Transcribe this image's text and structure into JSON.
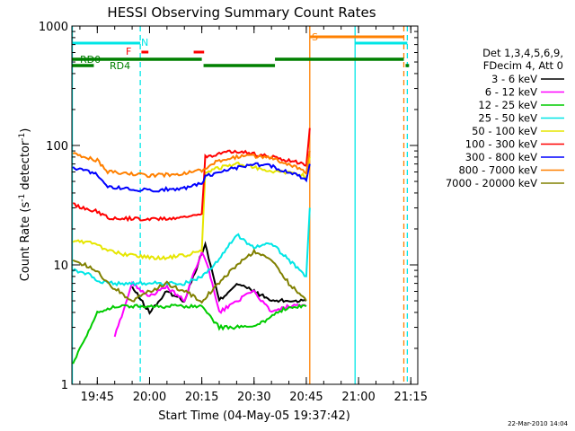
{
  "chart_data": {
    "type": "line",
    "title": "HESSI Observing Summary Count Rates",
    "xlabel": "Start Time (04-May-05 19:37:42)",
    "ylabel_main": "Count Rate (s",
    "ylabel_sup1": "-1",
    "ylabel_mid": " detector",
    "ylabel_sup2": "-1",
    "ylabel_end": ")",
    "yscale": "log",
    "ylim": [
      1,
      1000
    ],
    "xlim": [
      "19:37:42",
      "21:17:00"
    ],
    "x_ticks": [
      "19:45",
      "20:00",
      "20:15",
      "20:30",
      "20:45",
      "21:00",
      "21:15"
    ],
    "y_ticks": [
      "1",
      "10",
      "100",
      "1000"
    ],
    "timestamp": "22-Mar-2010 14:04",
    "legend": {
      "header1": "Det 1,3,4,5,6,9,",
      "header2": "FDecim 4, Att 0",
      "placement": "right"
    },
    "flags": [
      {
        "label": "N",
        "color": "#00e6e6"
      },
      {
        "label": "F",
        "color": "#ff0000"
      },
      {
        "label": "S",
        "color": "#ff8000"
      },
      {
        "label": "RD0",
        "color": "#008000"
      },
      {
        "label": "RD4",
        "color": "#008000"
      }
    ],
    "series": [
      {
        "name": "3 - 6 keV",
        "color": "#000000",
        "x": [
          "19:55",
          "20:00",
          "20:05",
          "20:10",
          "20:16",
          "20:20",
          "20:25",
          "20:30",
          "20:35",
          "20:40",
          "20:45"
        ],
        "y": [
          6.5,
          4,
          6,
          5,
          15,
          5,
          7,
          6,
          5,
          5,
          5
        ]
      },
      {
        "name": "6 - 12 keV",
        "color": "#ff00ff",
        "x": [
          "19:50",
          "19:55",
          "20:00",
          "20:05",
          "20:10",
          "20:15",
          "20:17",
          "20:20",
          "20:25",
          "20:30",
          "20:35",
          "20:40",
          "20:45"
        ],
        "y": [
          2.5,
          7,
          5.5,
          6.5,
          5,
          13,
          9,
          4,
          5,
          6,
          4,
          4.5,
          4.5
        ]
      },
      {
        "name": "12 - 25 keV",
        "color": "#00cc00",
        "x": [
          "19:38",
          "19:45",
          "19:50",
          "20:00",
          "20:10",
          "20:15",
          "20:20",
          "20:30",
          "20:40",
          "20:45"
        ],
        "y": [
          1.5,
          4,
          4.5,
          4.5,
          4.5,
          4.5,
          3,
          3,
          4.5,
          4.5
        ]
      },
      {
        "name": "25 - 50 keV",
        "color": "#00e6e6",
        "x": [
          "19:38",
          "19:42",
          "19:45",
          "19:48",
          "20:00",
          "20:10",
          "20:15",
          "20:20",
          "20:25",
          "20:30",
          "20:35",
          "20:40",
          "20:45",
          "20:46"
        ],
        "y": [
          9,
          8.5,
          7.5,
          7,
          7,
          7,
          8,
          11,
          18,
          14,
          15,
          11,
          8,
          30
        ]
      },
      {
        "name": "50 - 100 keV",
        "color": "#e6e600",
        "x": [
          "19:38",
          "19:45",
          "19:48",
          "19:55",
          "20:00",
          "20:05",
          "20:10",
          "20:15",
          "20:16",
          "20:20",
          "20:25",
          "20:30",
          "20:35",
          "20:40",
          "20:45",
          "20:46"
        ],
        "y": [
          16,
          15,
          13,
          12,
          11.5,
          11.5,
          12,
          13,
          60,
          65,
          70,
          66,
          60,
          60,
          55,
          80
        ]
      },
      {
        "name": "100 - 300 keV",
        "color": "#ff0000",
        "x": [
          "19:38",
          "19:45",
          "19:48",
          "20:00",
          "20:10",
          "20:15",
          "20:16",
          "20:20",
          "20:25",
          "20:30",
          "20:35",
          "20:40",
          "20:45",
          "20:46"
        ],
        "y": [
          32,
          28,
          25,
          24,
          25,
          27,
          80,
          85,
          90,
          85,
          80,
          75,
          70,
          140
        ]
      },
      {
        "name": "300 - 800 keV",
        "color": "#0000ff",
        "x": [
          "19:38",
          "19:45",
          "19:48",
          "20:00",
          "20:10",
          "20:15",
          "20:16",
          "20:20",
          "20:25",
          "20:30",
          "20:35",
          "20:40",
          "20:45",
          "20:46"
        ],
        "y": [
          65,
          58,
          45,
          42,
          44,
          48,
          55,
          60,
          65,
          70,
          67,
          60,
          52,
          70
        ]
      },
      {
        "name": "800 - 7000 keV",
        "color": "#ff8000",
        "x": [
          "19:38",
          "19:45",
          "19:48",
          "20:00",
          "20:10",
          "20:15",
          "20:16",
          "20:20",
          "20:25",
          "20:30",
          "20:35",
          "20:40",
          "20:45",
          "20:46"
        ],
        "y": [
          85,
          75,
          60,
          56,
          58,
          62,
          65,
          75,
          80,
          82,
          78,
          70,
          60,
          90
        ]
      },
      {
        "name": "7000 - 20000 keV",
        "color": "#808000",
        "x": [
          "19:38",
          "19:45",
          "19:48",
          "19:55",
          "20:00",
          "20:05",
          "20:10",
          "20:15",
          "20:20",
          "20:25",
          "20:30",
          "20:35",
          "20:40",
          "20:45"
        ],
        "y": [
          11,
          9,
          7,
          5,
          6,
          7,
          6,
          5,
          7,
          10,
          13,
          11,
          7,
          5
        ]
      }
    ]
  }
}
